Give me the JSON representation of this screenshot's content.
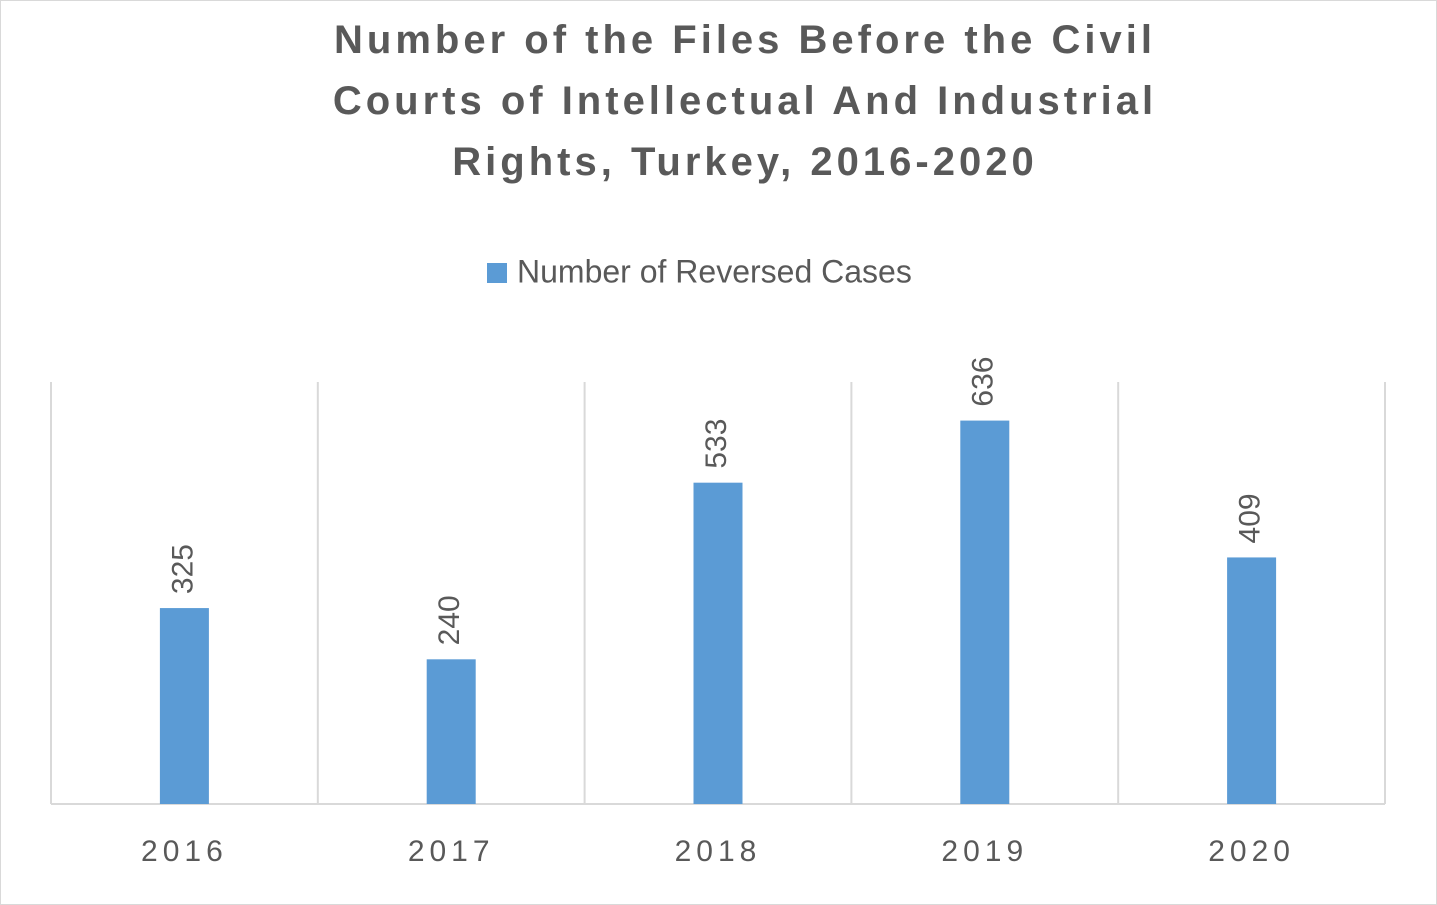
{
  "chart_data": {
    "type": "bar",
    "title": "Number of the Files Before the Civil Courts of Intellectual And Industrial Rights, Turkey, 2016-2020",
    "categories": [
      "2016",
      "2017",
      "2018",
      "2019",
      "2020"
    ],
    "series": [
      {
        "name": "Number of Reversed Cases",
        "color": "#5b9bd5",
        "values": [
          325,
          240,
          533,
          636,
          409
        ]
      }
    ],
    "ylim": [
      0,
      700
    ],
    "legend": "top"
  }
}
